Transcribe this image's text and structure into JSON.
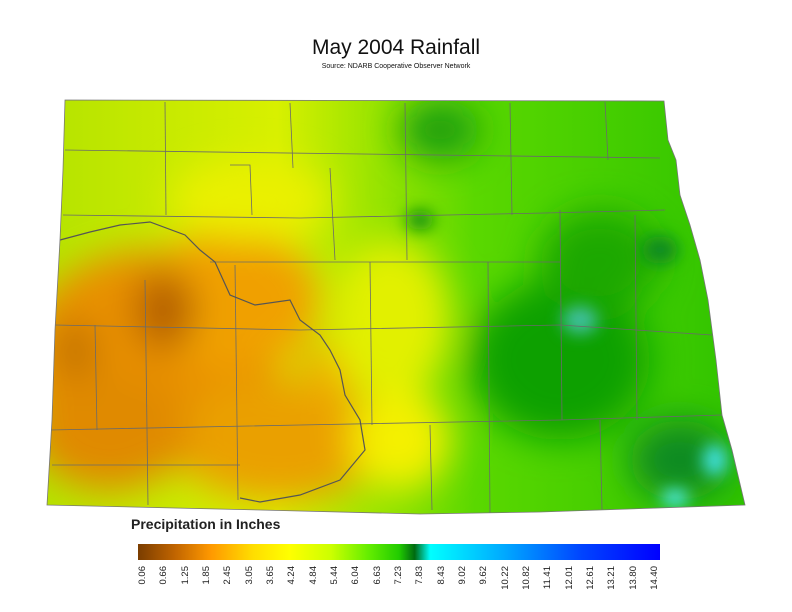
{
  "title": "May 2004 Rainfall",
  "subtitle": "Source: NDARB Cooperative Observer Network",
  "legend": {
    "title": "Precipitation in Inches",
    "ticks": [
      "0.06",
      "0.66",
      "1.25",
      "1.85",
      "2.45",
      "3.05",
      "3.65",
      "4.24",
      "4.84",
      "5.44",
      "6.04",
      "6.63",
      "7.23",
      "7.83",
      "8.43",
      "9.02",
      "9.62",
      "10.22",
      "10.82",
      "11.41",
      "12.01",
      "12.61",
      "13.21",
      "13.80",
      "14.40"
    ],
    "colors": [
      "#7a3d00",
      "#c06400",
      "#ff9900",
      "#ffcc00",
      "#ffff00",
      "#ccff00",
      "#66ee00",
      "#22cc00",
      "#006a10",
      "#00ffff",
      "#00aaff",
      "#0044ff",
      "#0000ff"
    ]
  }
}
